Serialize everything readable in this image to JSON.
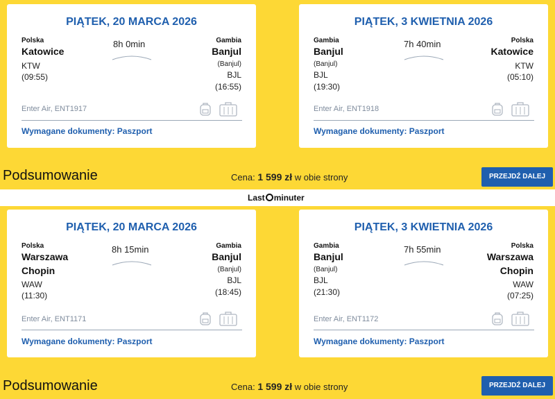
{
  "offers": [
    {
      "outbound": {
        "date": "PIĄTEK, 20 MARCA 2026",
        "from": {
          "country": "Polska",
          "city1": "Katowice",
          "city2": "",
          "sub": "",
          "code": "KTW",
          "time": "(09:55)"
        },
        "to": {
          "country": "Gambia",
          "city1": "Banjul",
          "city2": "",
          "sub": "(Banjul)",
          "code": "BJL",
          "time": "(16:55)"
        },
        "duration": "8h 0min",
        "airline": "Enter Air, ENT1917",
        "docs": "Wymagane dokumenty: Paszport"
      },
      "inbound": {
        "date": "PIĄTEK, 3 KWIETNIA 2026",
        "from": {
          "country": "Gambia",
          "city1": "Banjul",
          "city2": "",
          "sub": "(Banjul)",
          "code": "BJL",
          "time": "(19:30)"
        },
        "to": {
          "country": "Polska",
          "city1": "Katowice",
          "city2": "",
          "sub": "",
          "code": "KTW",
          "time": "(05:10)"
        },
        "duration": "7h 40min",
        "airline": "Enter Air, ENT1918",
        "docs": "Wymagane dokumenty: Paszport"
      },
      "summary": {
        "title": "Podsumowanie",
        "price_prefix": "Cena:",
        "price": "1 599 zł",
        "price_suffix": "w obie strony",
        "button": "PRZEJDŹ DALEJ"
      }
    },
    {
      "outbound": {
        "date": "PIĄTEK, 20 MARCA 2026",
        "from": {
          "country": "Polska",
          "city1": "Warszawa",
          "city2": "Chopin",
          "sub": "",
          "code": "WAW",
          "time": "(11:30)"
        },
        "to": {
          "country": "Gambia",
          "city1": "Banjul",
          "city2": "",
          "sub": "(Banjul)",
          "code": "BJL",
          "time": "(18:45)"
        },
        "duration": "8h 15min",
        "airline": "Enter Air, ENT1171",
        "docs": "Wymagane dokumenty: Paszport"
      },
      "inbound": {
        "date": "PIĄTEK, 3 KWIETNIA 2026",
        "from": {
          "country": "Gambia",
          "city1": "Banjul",
          "city2": "",
          "sub": "(Banjul)",
          "code": "BJL",
          "time": "(21:30)"
        },
        "to": {
          "country": "Polska",
          "city1": "Warszawa",
          "city2": "Chopin",
          "sub": "",
          "code": "WAW",
          "time": "(07:25)"
        },
        "duration": "7h 55min",
        "airline": "Enter Air, ENT1172",
        "docs": "Wymagane dokumenty: Paszport"
      },
      "summary": {
        "title": "Podsumowanie",
        "price_prefix": "Cena:",
        "price": "1 599 zł",
        "price_suffix": "w obie strony",
        "button": "PRZEJDŹ DALEJ"
      }
    }
  ],
  "logo": {
    "part1": "Last",
    "part2": "minuter"
  },
  "colors": {
    "accent": "#1f5fae",
    "background": "#FDD835"
  }
}
